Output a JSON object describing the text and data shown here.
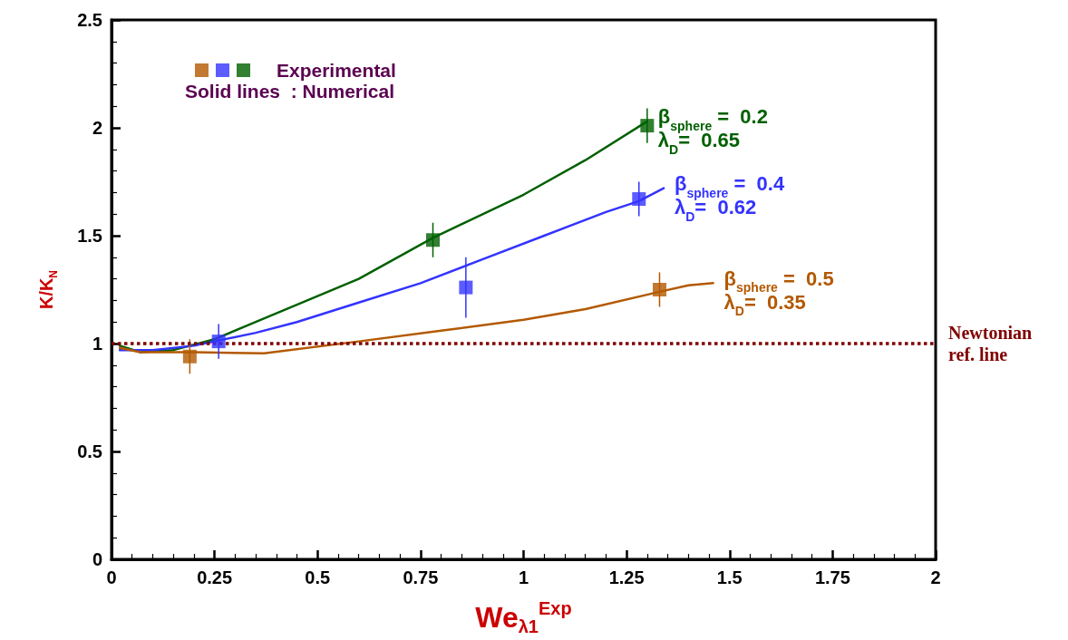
{
  "chart_data": {
    "type": "line",
    "xlabel": "We$_{λ1}$$^{Exp}$",
    "ylabel": "K/K$_{N}$",
    "xlim": [
      0,
      2
    ],
    "xticks": [
      0,
      0.25,
      0.5,
      0.75,
      1,
      1.25,
      1.5,
      1.75,
      2
    ],
    "ylim": [
      0,
      2.5
    ],
    "yticks": [
      0,
      0.5,
      1,
      1.5,
      2,
      2.5
    ],
    "grid": false,
    "legend": "top left",
    "line_style": "solid",
    "series": [
      {
        "name": "β$_{sphere}$ =  0.2\nλ$_{D}$=  0.65",
        "marker": "none",
        "color": "#006000",
        "x": [
          0.02,
          0.07,
          0.15,
          0.25,
          0.35,
          0.45,
          0.6,
          0.78,
          1.0,
          1.15,
          1.3
        ],
        "values": [
          0.99,
          0.96,
          0.97,
          1.02,
          1.1,
          1.18,
          1.3,
          1.49,
          1.69,
          1.85,
          2.03
        ]
      },
      {
        "name": "β$_{sphere}$ =  0.4\nλ$_{D}$=  0.62",
        "marker": "none",
        "color": "#3333ff",
        "x": [
          0.02,
          0.1,
          0.2,
          0.25,
          0.35,
          0.45,
          0.6,
          0.75,
          0.9,
          1.05,
          1.2,
          1.28,
          1.34
        ],
        "values": [
          0.97,
          0.97,
          0.99,
          1.01,
          1.05,
          1.1,
          1.19,
          1.28,
          1.39,
          1.5,
          1.61,
          1.66,
          1.72
        ]
      },
      {
        "name": "β$_{sphere}$ =  0.5\nλ$_{D}$=  0.35",
        "marker": "none",
        "color": "#b35900",
        "x": [
          0.02,
          0.07,
          0.2,
          0.37,
          0.6,
          0.8,
          1.0,
          1.15,
          1.33,
          1.4,
          1.46
        ],
        "values": [
          0.98,
          0.96,
          0.96,
          0.955,
          1.01,
          1.06,
          1.11,
          1.16,
          1.24,
          1.27,
          1.28
        ]
      },
      {
        "type": "scatter",
        "marker": "square",
        "color": "#b35900",
        "x": [
          0.19,
          1.33
        ],
        "values": [
          0.94,
          1.25
        ],
        "errors": [
          0.08,
          0.08
        ]
      },
      {
        "type": "scatter",
        "marker": "square",
        "color": "#3333ff",
        "x": [
          0.26,
          0.86,
          1.28
        ],
        "values": [
          1.01,
          1.26,
          1.67
        ],
        "errors": [
          0.08,
          0.14,
          0.08
        ]
      },
      {
        "name": "Experimental",
        "type": "scatter",
        "marker": "square",
        "color": "#006000",
        "x": [
          0.78,
          1.3
        ],
        "values": [
          1.48,
          2.01
        ],
        "errors": [
          0.08,
          0.08
        ]
      }
    ],
    "ref_lines": [
      {
        "axis": "y",
        "value": 1,
        "label": "Newtonian ref. line",
        "color": "#800000",
        "line_style": "dotted"
      }
    ],
    "annotations": [
      "Solid lines  : Numerical"
    ]
  }
}
